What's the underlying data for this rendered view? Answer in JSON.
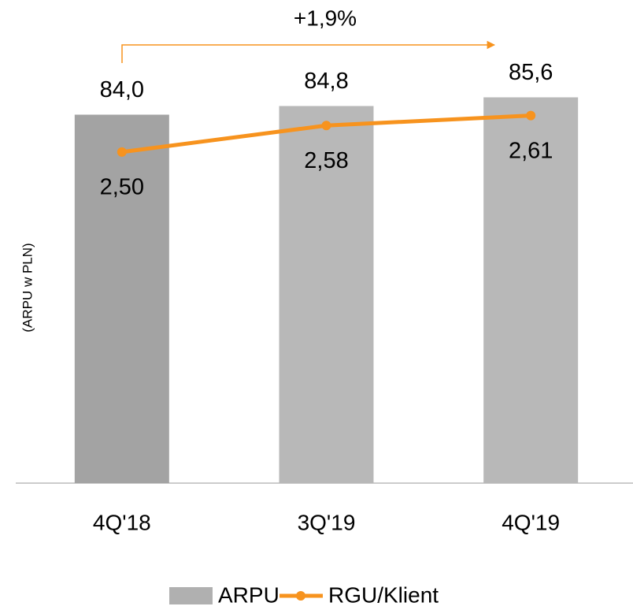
{
  "chart_data": {
    "type": "bar",
    "annotation": "+1,9%",
    "y_axis_label": "(ARPU w PLN)",
    "categories": [
      "4Q'18",
      "3Q'19",
      "4Q'19"
    ],
    "series": [
      {
        "name": "ARPU",
        "type": "bar",
        "colors": [
          "#a3a3a3",
          "#b8b8b8",
          "#b8b8b8"
        ],
        "color": "#b0b0b0",
        "values": [
          84.0,
          84.8,
          85.6
        ],
        "value_labels": [
          "84,0",
          "84,8",
          "85,6"
        ]
      },
      {
        "name": "RGU/Klient",
        "type": "line",
        "axis": "y2",
        "color": "#f7931e",
        "values": [
          2.5,
          2.58,
          2.61
        ],
        "value_labels": [
          "2,50",
          "2,58",
          "2,61"
        ]
      }
    ],
    "ylim": [
      50,
      94
    ],
    "y2lim": [
      1.5,
      2.94
    ]
  }
}
